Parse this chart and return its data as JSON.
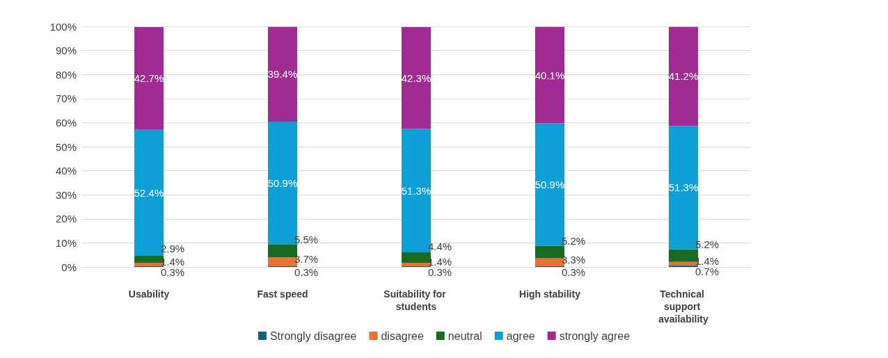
{
  "chart_data": {
    "type": "bar",
    "stacked": true,
    "categories": [
      "Usability",
      "Fast speed",
      "Suitability for students",
      "High stability",
      "Technical support availability"
    ],
    "series": [
      {
        "name": "Strongly disagree",
        "color": "#156082",
        "values": [
          0.3,
          0.3,
          0.3,
          0.3,
          0.7
        ],
        "value_labels": [
          "0.3%",
          "0.3%",
          "0.3%",
          "0.3%",
          "0.7%"
        ]
      },
      {
        "name": "disagree",
        "color": "#e97132",
        "values": [
          1.4,
          3.7,
          1.4,
          3.3,
          1.4
        ],
        "value_labels": [
          "1.4%",
          "3.7%",
          "1.4%",
          "3.3%",
          "1.4%"
        ]
      },
      {
        "name": "neutral",
        "color": "#196b24",
        "values": [
          2.9,
          5.5,
          4.4,
          5.2,
          5.2
        ],
        "value_labels": [
          "2.9%",
          "5.5%",
          "4.4%",
          "5.2%",
          "5.2%"
        ]
      },
      {
        "name": "agree",
        "color": "#0f9ed5",
        "values": [
          52.4,
          50.9,
          51.3,
          50.9,
          51.3
        ],
        "value_labels": [
          "52.4%",
          "50.9%",
          "51.3%",
          "50.9%",
          "51.3%"
        ]
      },
      {
        "name": "strongly agree",
        "color": "#a02b93",
        "values": [
          42.7,
          39.4,
          42.3,
          40.1,
          41.2
        ],
        "value_labels": [
          "42.7%",
          "39.4%",
          "42.3%",
          "40.1%",
          "41.2%"
        ]
      }
    ],
    "ylim": [
      0,
      100
    ],
    "yticks": [
      {
        "value": 0,
        "label": "0%"
      },
      {
        "value": 10,
        "label": "10%"
      },
      {
        "value": 20,
        "label": "20%"
      },
      {
        "value": 30,
        "label": "30%"
      },
      {
        "value": 40,
        "label": "40%"
      },
      {
        "value": 50,
        "label": "50%"
      },
      {
        "value": 60,
        "label": "60%"
      },
      {
        "value": 70,
        "label": "70%"
      },
      {
        "value": 80,
        "label": "80%"
      },
      {
        "value": 90,
        "label": "90%"
      },
      {
        "value": 100,
        "label": "100%"
      }
    ],
    "grid": "y",
    "legend": "bottom"
  }
}
